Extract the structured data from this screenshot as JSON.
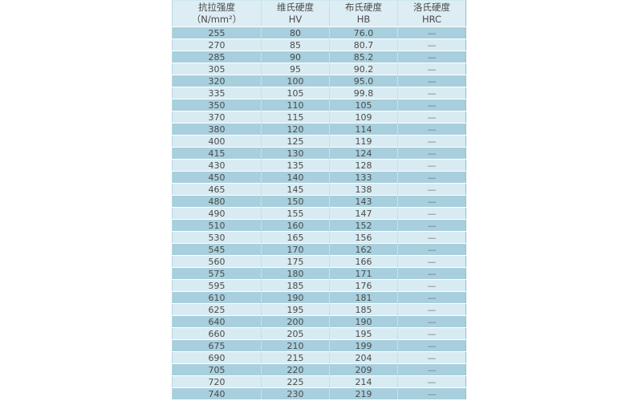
{
  "page": {
    "background": "#ffffff"
  },
  "colors": {
    "row_dark": "#a8cfdd",
    "row_light": "#d8ebf2",
    "header_bg": "#dcedf3",
    "vertical_border": "#c5e2eb",
    "horizontal_border": "#ffffff",
    "outer_border_left": "#b7dae5",
    "outer_border_right": "#8cc0d1",
    "outer_border_top": "#cde7ef",
    "text": "#4a4a4a",
    "dash": "#7a7a7a"
  },
  "table": {
    "headers": [
      {
        "title": "抗拉强度",
        "unit": "（N/mm²）"
      },
      {
        "title": "维氏硬度",
        "unit": "HV"
      },
      {
        "title": "布氏硬度",
        "unit": "HB"
      },
      {
        "title": "洛氏硬度",
        "unit": "HRC"
      }
    ],
    "rows": [
      [
        "255",
        "80",
        "76.0",
        "—"
      ],
      [
        "270",
        "85",
        "80.7",
        "—"
      ],
      [
        "285",
        "90",
        "85.2",
        "—"
      ],
      [
        "305",
        "95",
        "90.2",
        "—"
      ],
      [
        "320",
        "100",
        "95.0",
        "—"
      ],
      [
        "335",
        "105",
        "99.8",
        "—"
      ],
      [
        "350",
        "110",
        "105",
        "—"
      ],
      [
        "370",
        "115",
        "109",
        "—"
      ],
      [
        "380",
        "120",
        "114",
        "—"
      ],
      [
        "400",
        "125",
        "119",
        "—"
      ],
      [
        "415",
        "130",
        "124",
        "—"
      ],
      [
        "430",
        "135",
        "128",
        "—"
      ],
      [
        "450",
        "140",
        "133",
        "—"
      ],
      [
        "465",
        "145",
        "138",
        "—"
      ],
      [
        "480",
        "150",
        "143",
        "—"
      ],
      [
        "490",
        "155",
        "147",
        "—"
      ],
      [
        "510",
        "160",
        "152",
        "—"
      ],
      [
        "530",
        "165",
        "156",
        "—"
      ],
      [
        "545",
        "170",
        "162",
        "—"
      ],
      [
        "560",
        "175",
        "166",
        "—"
      ],
      [
        "575",
        "180",
        "171",
        "—"
      ],
      [
        "595",
        "185",
        "176",
        "—"
      ],
      [
        "610",
        "190",
        "181",
        "—"
      ],
      [
        "625",
        "195",
        "185",
        "—"
      ],
      [
        "640",
        "200",
        "190",
        "—"
      ],
      [
        "660",
        "205",
        "195",
        "—"
      ],
      [
        "675",
        "210",
        "199",
        "—"
      ],
      [
        "690",
        "215",
        "204",
        "—"
      ],
      [
        "705",
        "220",
        "209",
        "—"
      ],
      [
        "720",
        "225",
        "214",
        "—"
      ],
      [
        "740",
        "230",
        "219",
        "—"
      ]
    ]
  }
}
